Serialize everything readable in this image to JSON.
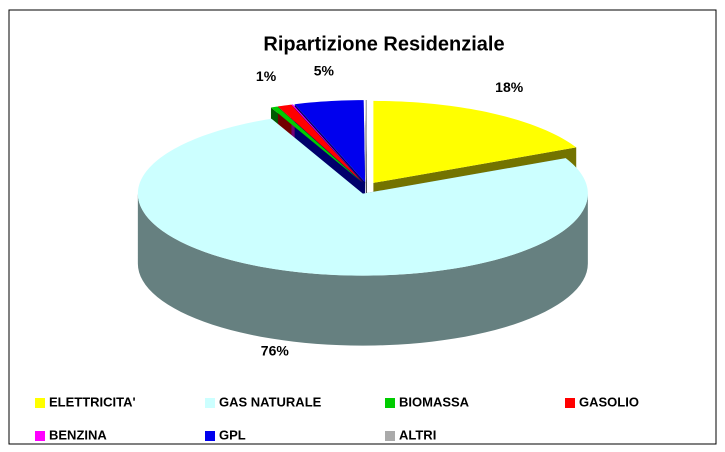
{
  "chart_data": {
    "type": "pie",
    "title": "Ripartizione Residenziale",
    "categories": [
      "ELETTRICITA'",
      "GAS NATURALE",
      "BIOMASSA",
      "GASOLIO",
      "BENZINA",
      "GPL",
      "ALTRI"
    ],
    "values": [
      18,
      76,
      0.5,
      1,
      0.1,
      5,
      0.1
    ],
    "value_labels": [
      "18%",
      "76%",
      null,
      "1%",
      null,
      "5%",
      null
    ],
    "colors": [
      "#ffff00",
      "#ccffff",
      "#00cc00",
      "#ff0000",
      "#ff00ff",
      "#0000ee",
      "#aaaaaa"
    ],
    "legend": "bottom"
  }
}
